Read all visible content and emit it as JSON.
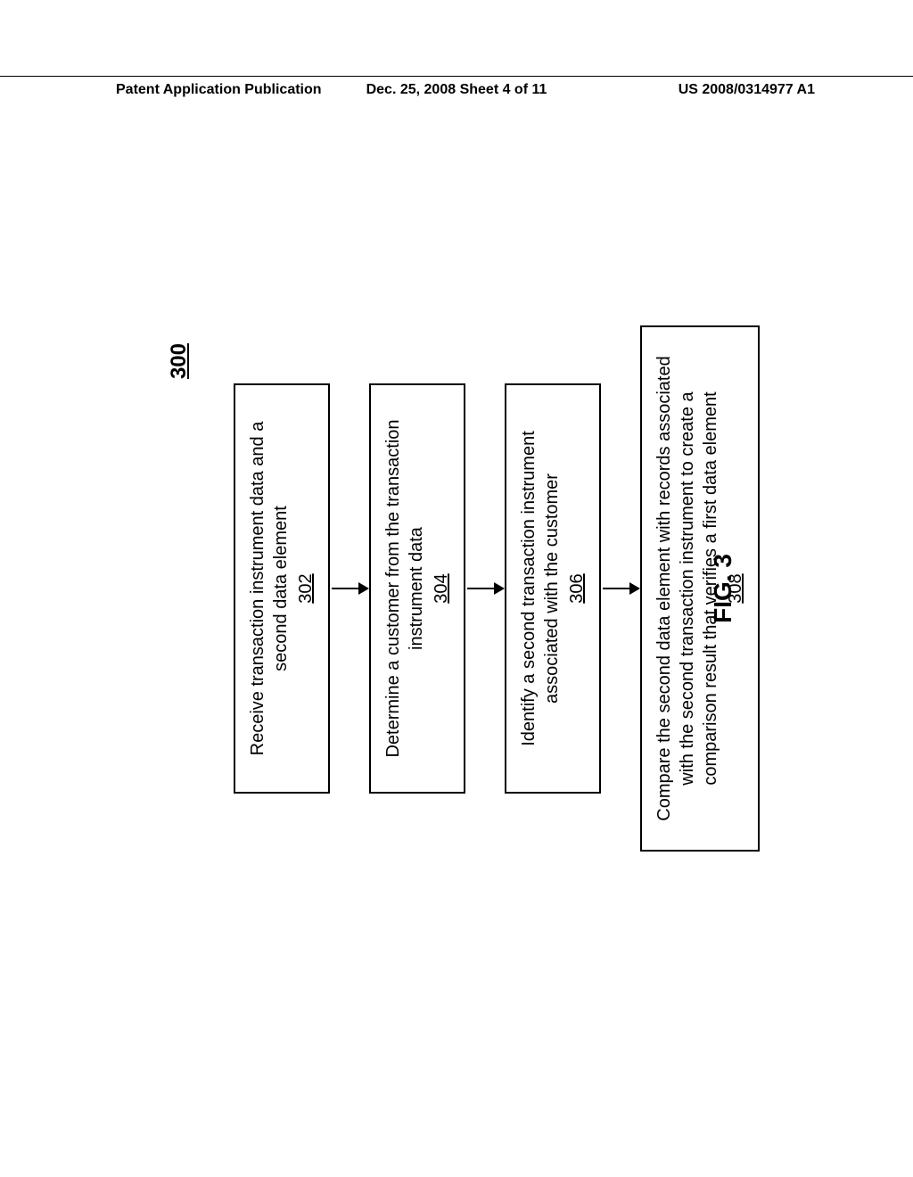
{
  "header": {
    "left": "Patent Application Publication",
    "center": "Dec. 25, 2008  Sheet 4 of 11",
    "right": "US 2008/0314977 A1"
  },
  "diagram": {
    "type": "flowchart",
    "ref_number": "300",
    "fig_label": "FIG. 3",
    "nodes": [
      {
        "text": "Receive transaction instrument data and a second data element",
        "num": "302",
        "width": "narrow"
      },
      {
        "text": "Determine a customer from the transaction instrument data",
        "num": "304",
        "width": "narrow"
      },
      {
        "text": "Identify a second transaction instrument associated with the customer",
        "num": "306",
        "width": "narrow"
      },
      {
        "text": "Compare the second data element with records associated with the second transaction instrument to create a comparison result that verifies a first data element",
        "num": "308",
        "width": "wide"
      }
    ],
    "colors": {
      "border": "#000000",
      "background": "#ffffff",
      "text": "#000000",
      "arrow": "#000000"
    },
    "font_sizes": {
      "header": 16,
      "ref_number": 24,
      "box_text": 20,
      "fig_label": 28
    }
  }
}
